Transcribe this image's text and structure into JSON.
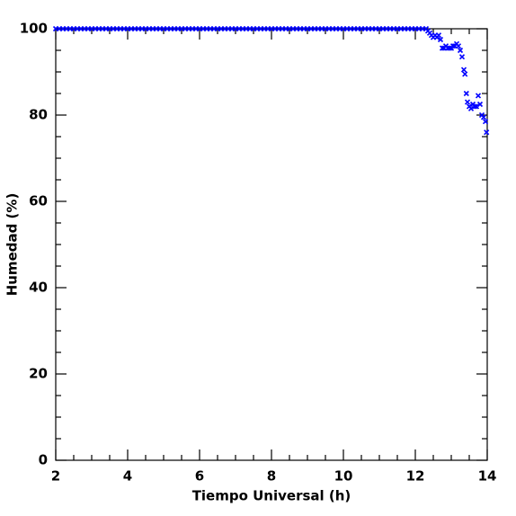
{
  "chart_data": {
    "type": "scatter",
    "x_label": "Tiempo Universal (h)",
    "y_label": "Humedad (%)",
    "xlim": [
      2,
      14
    ],
    "ylim": [
      0,
      100
    ],
    "xticks": [
      2,
      4,
      6,
      8,
      10,
      12,
      14
    ],
    "yticks": [
      0,
      20,
      40,
      60,
      80,
      100
    ],
    "marker": "x",
    "series": [
      {
        "color": "#0000ff",
        "x": [
          2.0,
          2.1,
          2.2,
          2.3,
          2.4,
          2.5,
          2.6,
          2.7,
          2.8,
          2.9,
          3.0,
          3.1,
          3.2,
          3.3,
          3.4,
          3.5,
          3.6,
          3.7,
          3.8,
          3.9,
          4.0,
          4.1,
          4.2,
          4.3,
          4.4,
          4.5,
          4.6,
          4.7,
          4.8,
          4.9,
          5.0,
          5.1,
          5.2,
          5.3,
          5.4,
          5.5,
          5.6,
          5.7,
          5.8,
          5.9,
          6.0,
          6.1,
          6.2,
          6.3,
          6.4,
          6.5,
          6.6,
          6.7,
          6.8,
          6.9,
          7.0,
          7.1,
          7.2,
          7.3,
          7.4,
          7.5,
          7.6,
          7.7,
          7.8,
          7.9,
          8.0,
          8.1,
          8.2,
          8.3,
          8.4,
          8.5,
          8.6,
          8.7,
          8.8,
          8.9,
          9.0,
          9.1,
          9.2,
          9.3,
          9.4,
          9.5,
          9.6,
          9.7,
          9.8,
          9.9,
          10.0,
          10.1,
          10.2,
          10.3,
          10.4,
          10.5,
          10.6,
          10.7,
          10.8,
          10.9,
          11.0,
          11.1,
          11.2,
          11.3,
          11.4,
          11.5,
          11.6,
          11.7,
          11.8,
          11.9,
          12.0,
          12.1,
          12.2,
          12.3,
          12.35,
          12.4,
          12.45,
          12.5,
          12.55,
          12.6,
          12.65,
          12.7,
          12.75,
          12.8,
          12.85,
          12.9,
          12.95,
          13.0,
          13.05,
          13.1,
          13.15,
          13.2,
          13.25,
          13.3,
          13.35,
          13.38,
          13.42,
          13.45,
          13.5,
          13.55,
          13.6,
          13.65,
          13.7,
          13.75,
          13.8,
          13.85,
          13.9,
          13.95,
          13.98
        ],
        "values": [
          100,
          100,
          100,
          100,
          100,
          100,
          100,
          100,
          100,
          100,
          100,
          100,
          100,
          100,
          100,
          100,
          100,
          100,
          100,
          100,
          100,
          100,
          100,
          100,
          100,
          100,
          100,
          100,
          100,
          100,
          100,
          100,
          100,
          100,
          100,
          100,
          100,
          100,
          100,
          100,
          100,
          100,
          100,
          100,
          100,
          100,
          100,
          100,
          100,
          100,
          100,
          100,
          100,
          100,
          100,
          100,
          100,
          100,
          100,
          100,
          100,
          100,
          100,
          100,
          100,
          100,
          100,
          100,
          100,
          100,
          100,
          100,
          100,
          100,
          100,
          100,
          100,
          100,
          100,
          100,
          100,
          100,
          100,
          100,
          100,
          100,
          100,
          100,
          100,
          100,
          100,
          100,
          100,
          100,
          100,
          100,
          100,
          100,
          100,
          100,
          100,
          100,
          100,
          100,
          99.5,
          99,
          98.5,
          98,
          98.5,
          98,
          98.5,
          97.5,
          95.5,
          95.5,
          96,
          95.5,
          95.5,
          95.5,
          96,
          96,
          96.5,
          96,
          95,
          93.5,
          90.5,
          89.5,
          85,
          83,
          82,
          81.5,
          82.5,
          82,
          82,
          84.5,
          82.5,
          80,
          79.5,
          78.5,
          76
        ]
      }
    ]
  }
}
